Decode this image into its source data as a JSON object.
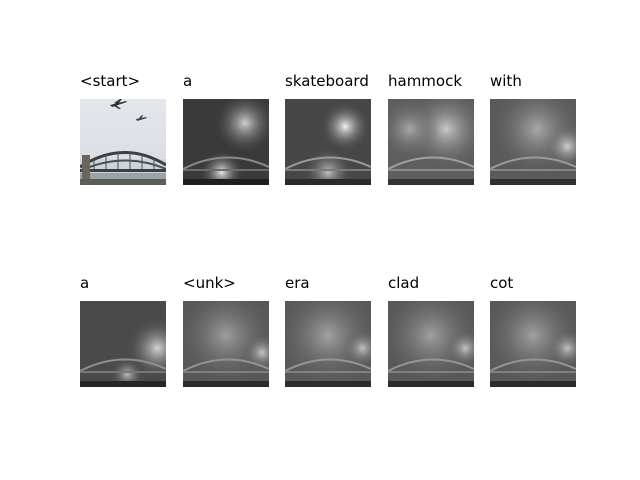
{
  "panels": [
    {
      "word": "<start>",
      "kind": "original"
    },
    {
      "word": "a",
      "kind": "attention",
      "focus": "plane-high"
    },
    {
      "word": "skateboard",
      "kind": "attention",
      "focus": "plane-bright"
    },
    {
      "word": "hammock",
      "kind": "attention",
      "focus": "plane-diffuse"
    },
    {
      "word": "with",
      "kind": "attention",
      "focus": "sky-diffuse"
    },
    {
      "word": "a",
      "kind": "attention",
      "focus": "right-edge"
    },
    {
      "word": "<unk>",
      "kind": "attention",
      "focus": "sky-diffuse"
    },
    {
      "word": "era",
      "kind": "attention",
      "focus": "sky-diffuse"
    },
    {
      "word": "clad",
      "kind": "attention",
      "focus": "sky-diffuse"
    },
    {
      "word": "cot",
      "kind": "attention",
      "focus": "sky-diffuse"
    }
  ]
}
